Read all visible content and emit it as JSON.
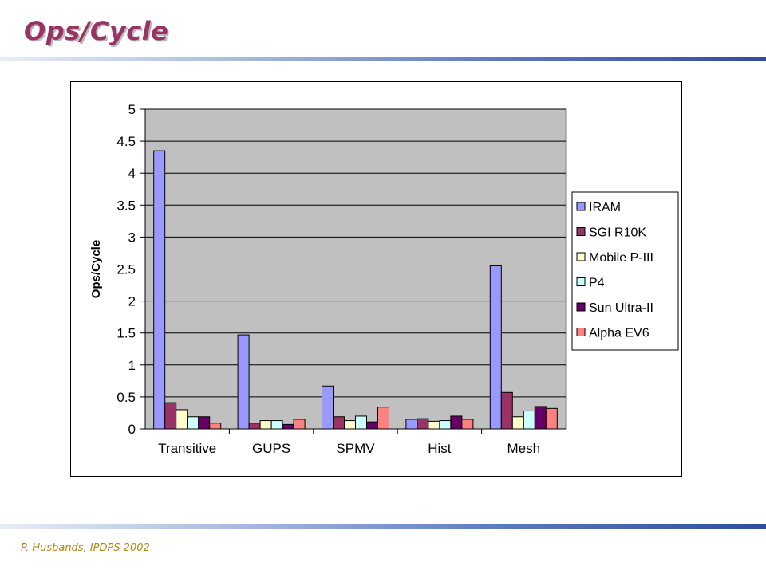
{
  "slide": {
    "title": "Ops/Cycle",
    "footer": "P. Husbands, IPDPS 2002"
  },
  "colors": {
    "title": "#993366",
    "footer": "#b8860b",
    "plot_area": "#c0c0c0"
  },
  "chart_data": {
    "type": "bar",
    "title": "",
    "xlabel": "",
    "ylabel": "Ops/Cycle",
    "ylim": [
      0,
      5
    ],
    "yticks": [
      "0",
      "0.5",
      "1",
      "1.5",
      "2",
      "2.5",
      "3",
      "3.5",
      "4",
      "4.5",
      "5"
    ],
    "grid": true,
    "legend_position": "right",
    "categories": [
      "Transitive",
      "GUPS",
      "SPMV",
      "Hist",
      "Mesh"
    ],
    "series": [
      {
        "name": "IRAM",
        "color": "#9999ff",
        "values": [
          4.35,
          1.47,
          0.67,
          0.15,
          2.55
        ]
      },
      {
        "name": "SGI R10K",
        "color": "#993366",
        "values": [
          0.41,
          0.09,
          0.19,
          0.16,
          0.57
        ]
      },
      {
        "name": "Mobile P-III",
        "color": "#ffffcc",
        "values": [
          0.3,
          0.13,
          0.13,
          0.12,
          0.19
        ]
      },
      {
        "name": "P4",
        "color": "#ccffff",
        "values": [
          0.19,
          0.13,
          0.2,
          0.13,
          0.28
        ]
      },
      {
        "name": "Sun Ultra-II",
        "color": "#660066",
        "values": [
          0.19,
          0.07,
          0.11,
          0.2,
          0.35
        ]
      },
      {
        "name": "Alpha EV6",
        "color": "#ff8080",
        "values": [
          0.09,
          0.15,
          0.34,
          0.15,
          0.32
        ]
      }
    ]
  }
}
